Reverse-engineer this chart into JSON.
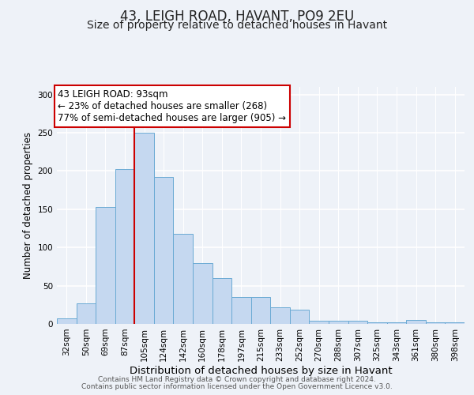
{
  "title": "43, LEIGH ROAD, HAVANT, PO9 2EU",
  "subtitle": "Size of property relative to detached houses in Havant",
  "xlabel": "Distribution of detached houses by size in Havant",
  "ylabel": "Number of detached properties",
  "categories": [
    "32sqm",
    "50sqm",
    "69sqm",
    "87sqm",
    "105sqm",
    "124sqm",
    "142sqm",
    "160sqm",
    "178sqm",
    "197sqm",
    "215sqm",
    "233sqm",
    "252sqm",
    "270sqm",
    "288sqm",
    "307sqm",
    "325sqm",
    "343sqm",
    "361sqm",
    "380sqm",
    "398sqm"
  ],
  "values": [
    7,
    27,
    153,
    203,
    250,
    192,
    118,
    80,
    60,
    35,
    35,
    22,
    19,
    4,
    4,
    4,
    2,
    2,
    5,
    2,
    2
  ],
  "bar_color": "#c5d8f0",
  "bar_edge_color": "#6aaad4",
  "vline_x_index": 3.5,
  "vline_color": "#cc0000",
  "annotation_title": "43 LEIGH ROAD: 93sqm",
  "annotation_line1": "← 23% of detached houses are smaller (268)",
  "annotation_line2": "77% of semi-detached houses are larger (905) →",
  "annotation_box_color": "#ffffff",
  "annotation_box_edge_color": "#cc0000",
  "ylim": [
    0,
    310
  ],
  "yticks": [
    0,
    50,
    100,
    150,
    200,
    250,
    300
  ],
  "background_color": "#eef2f8",
  "footer1": "Contains HM Land Registry data © Crown copyright and database right 2024.",
  "footer2": "Contains public sector information licensed under the Open Government Licence v3.0.",
  "title_fontsize": 12,
  "subtitle_fontsize": 10,
  "xlabel_fontsize": 9.5,
  "ylabel_fontsize": 8.5,
  "tick_fontsize": 7.5,
  "annotation_fontsize": 8.5,
  "footer_fontsize": 6.5
}
